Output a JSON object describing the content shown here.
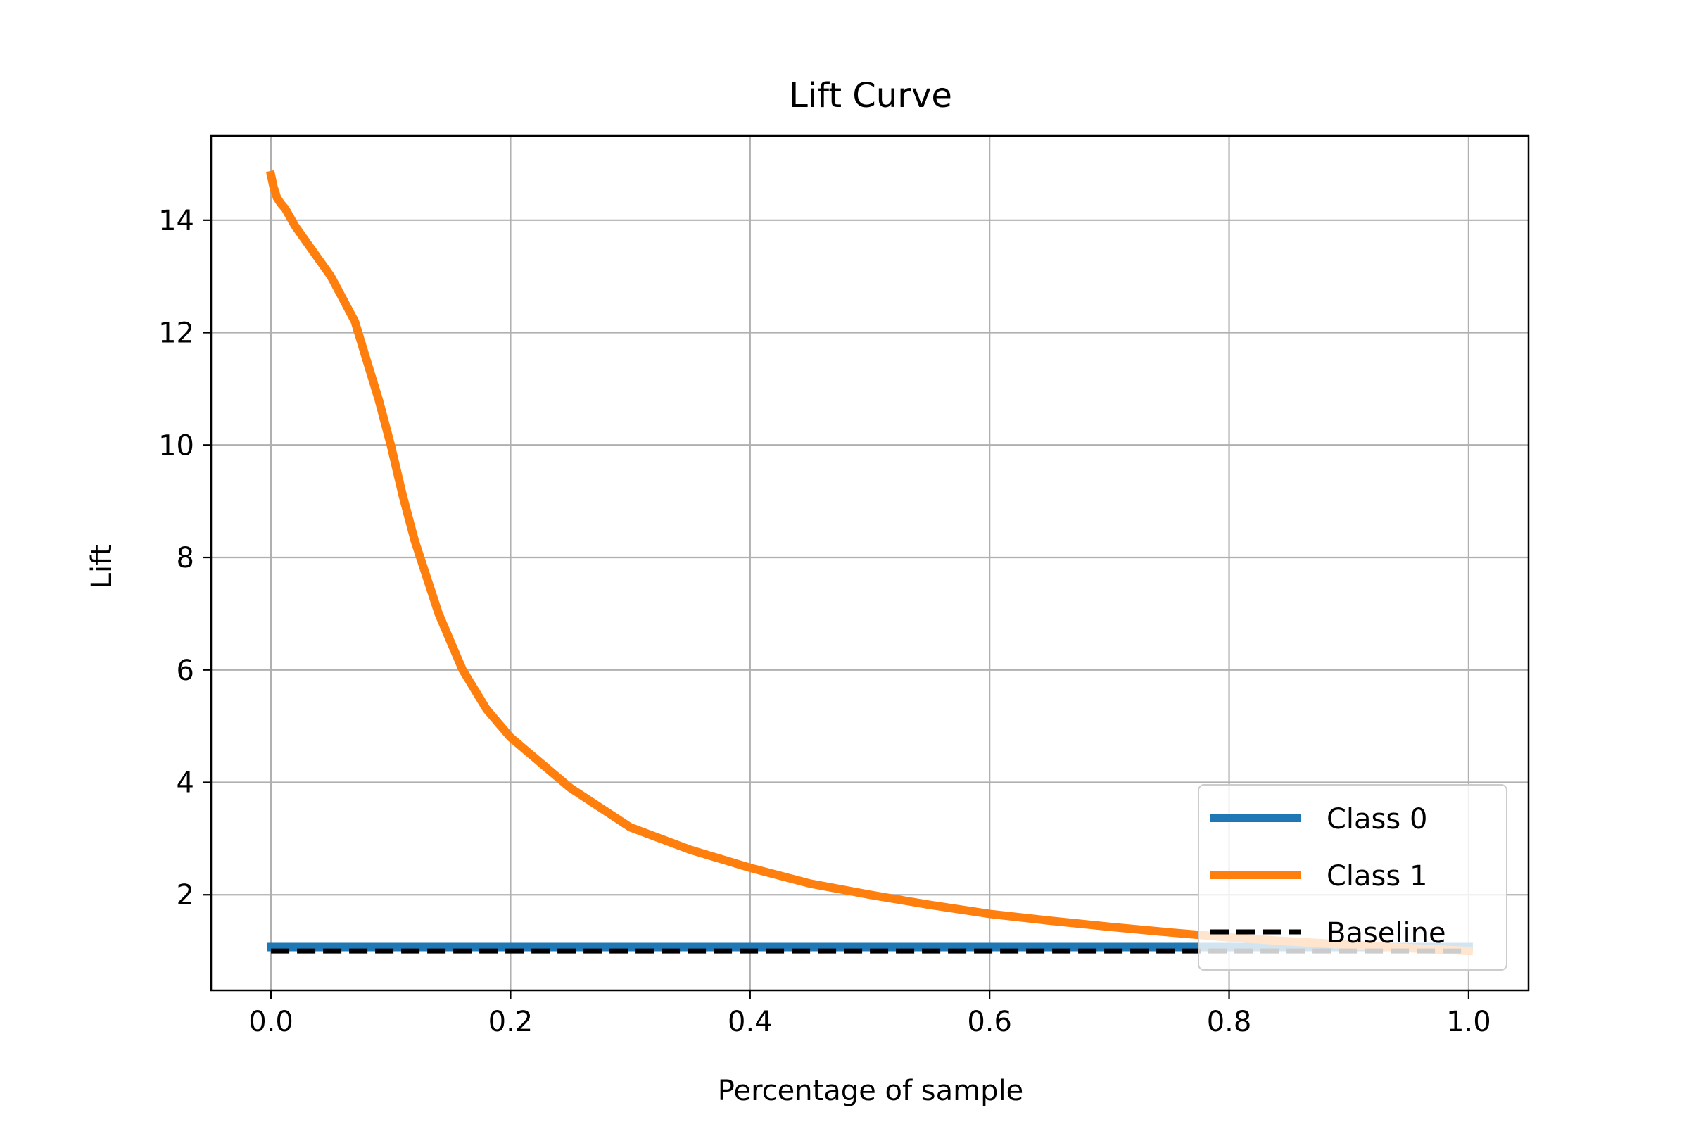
{
  "chart_data": {
    "type": "line",
    "title": "Lift Curve",
    "xlabel": "Percentage of sample",
    "ylabel": "Lift",
    "xlim": [
      -0.05,
      1.05
    ],
    "ylim": [
      0.3,
      15.5
    ],
    "xticks": [
      0.0,
      0.2,
      0.4,
      0.6,
      0.8,
      1.0
    ],
    "xtick_labels": [
      "0.0",
      "0.2",
      "0.4",
      "0.6",
      "0.8",
      "1.0"
    ],
    "yticks": [
      2,
      4,
      6,
      8,
      10,
      12,
      14
    ],
    "ytick_labels": [
      "2",
      "4",
      "6",
      "8",
      "10",
      "12",
      "14"
    ],
    "grid": true,
    "legend_position": "lower-right",
    "series": [
      {
        "name": "Class 0",
        "color": "#1f77b4",
        "style": "solid",
        "x": [
          0.0,
          1.0
        ],
        "y": [
          1.07,
          1.07
        ]
      },
      {
        "name": "Class 1",
        "color": "#ff7f0e",
        "style": "solid",
        "x": [
          0.0,
          0.002,
          0.005,
          0.008,
          0.012,
          0.02,
          0.03,
          0.04,
          0.05,
          0.06,
          0.07,
          0.08,
          0.09,
          0.1,
          0.11,
          0.12,
          0.14,
          0.16,
          0.18,
          0.2,
          0.25,
          0.3,
          0.35,
          0.4,
          0.45,
          0.5,
          0.55,
          0.6,
          0.65,
          0.7,
          0.75,
          0.8,
          0.85,
          0.9,
          0.95,
          1.0
        ],
        "y": [
          14.8,
          14.6,
          14.4,
          14.3,
          14.2,
          13.9,
          13.6,
          13.3,
          13.0,
          12.6,
          12.2,
          11.5,
          10.8,
          10.0,
          9.1,
          8.3,
          7.0,
          6.0,
          5.3,
          4.8,
          3.9,
          3.2,
          2.8,
          2.48,
          2.2,
          2.0,
          1.82,
          1.66,
          1.54,
          1.43,
          1.33,
          1.24,
          1.17,
          1.11,
          1.05,
          1.0
        ]
      },
      {
        "name": "Baseline",
        "color": "#000000",
        "style": "dashed",
        "x": [
          0.0,
          1.0
        ],
        "y": [
          1.0,
          1.0
        ]
      }
    ]
  }
}
